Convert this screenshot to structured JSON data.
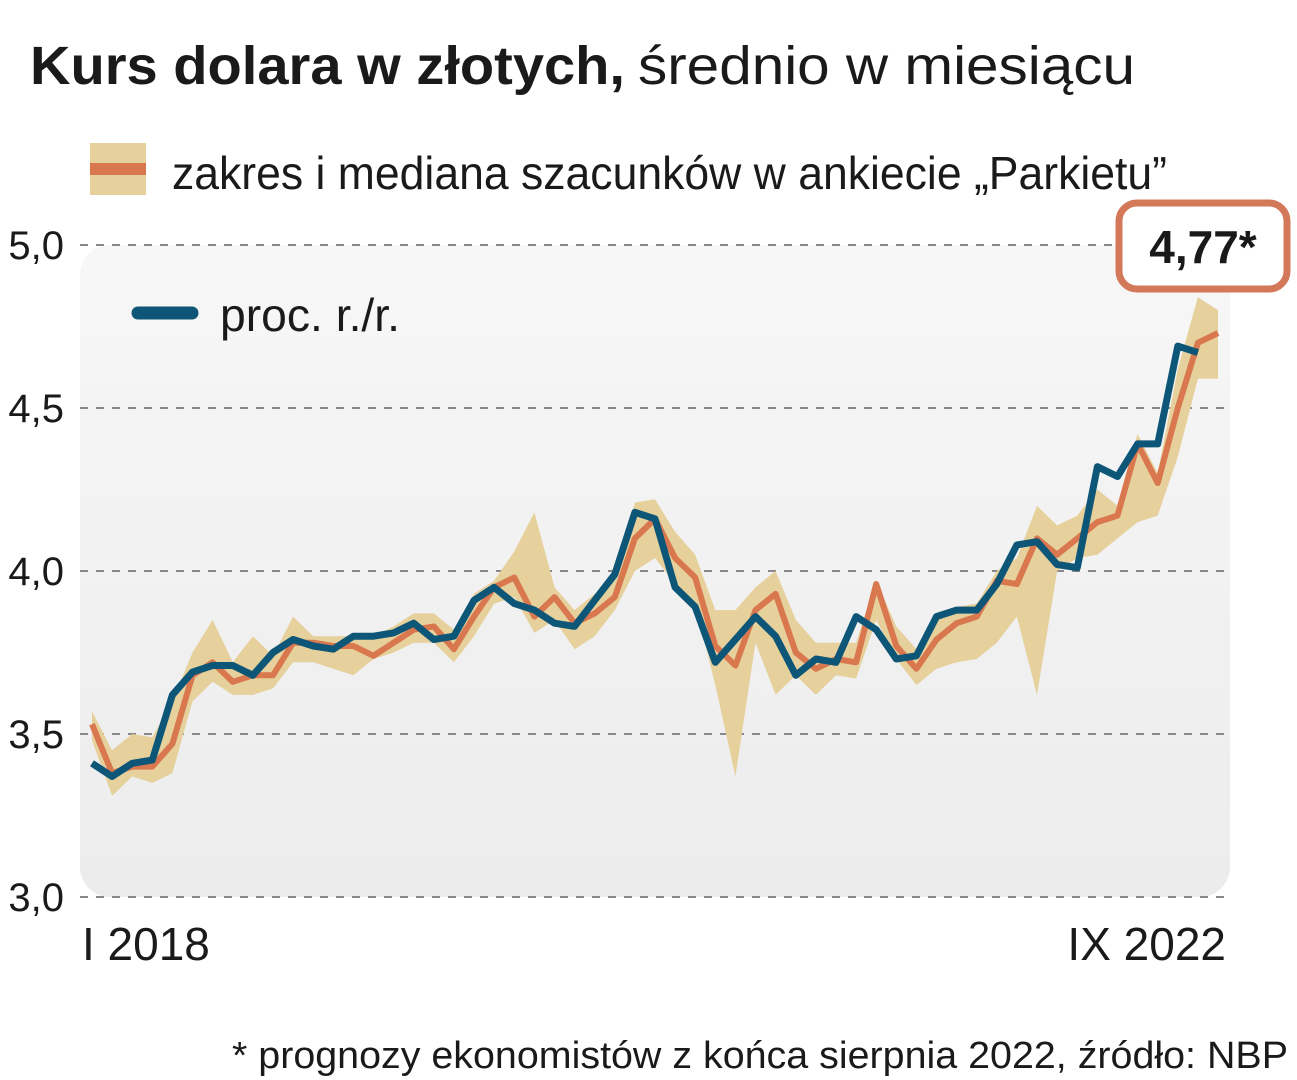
{
  "chart_data": {
    "type": "line",
    "title": "Kurs dolara w złotych,",
    "subtitle": "średnio w miesiącu",
    "annotation": "4,77*",
    "note": "* prognozy ekonomistów z końca sierpnia 2022, źródło: NBP",
    "categories": [
      "I 2018",
      null,
      null,
      null,
      null,
      null,
      null,
      null,
      null,
      null,
      null,
      null,
      null,
      null,
      null,
      null,
      null,
      null,
      null,
      null,
      null,
      null,
      null,
      null,
      null,
      null,
      null,
      null,
      null,
      null,
      null,
      null,
      null,
      null,
      null,
      null,
      null,
      null,
      null,
      null,
      null,
      null,
      null,
      null,
      null,
      null,
      null,
      null,
      null,
      null,
      null,
      null,
      null,
      null,
      null,
      null,
      "IX 2022"
    ],
    "series": [
      {
        "name": "zakres i mediana szacunków w ankiecie „Parkietu”",
        "color": "#d9774f",
        "band_color": "#e6d09c",
        "values": [
          3.53,
          3.38,
          3.4,
          3.4,
          3.47,
          3.68,
          3.72,
          3.66,
          3.68,
          3.68,
          3.78,
          3.78,
          3.77,
          3.77,
          3.74,
          3.78,
          3.82,
          3.83,
          3.76,
          3.86,
          3.95,
          3.98,
          3.86,
          3.92,
          3.84,
          3.87,
          3.92,
          4.1,
          4.16,
          4.04,
          3.98,
          3.77,
          3.71,
          3.88,
          3.93,
          3.75,
          3.7,
          3.73,
          3.72,
          3.96,
          3.77,
          3.7,
          3.79,
          3.84,
          3.86,
          3.97,
          3.96,
          4.1,
          4.05,
          4.1,
          4.15,
          4.17,
          4.39,
          4.27,
          4.5,
          4.7,
          4.73
        ],
        "low": [
          3.48,
          3.31,
          3.37,
          3.35,
          3.38,
          3.6,
          3.66,
          3.62,
          3.62,
          3.64,
          3.72,
          3.72,
          3.7,
          3.68,
          3.73,
          3.75,
          3.78,
          3.78,
          3.72,
          3.8,
          3.9,
          3.92,
          3.81,
          3.85,
          3.76,
          3.8,
          3.88,
          4.0,
          4.04,
          3.96,
          3.9,
          3.65,
          3.37,
          3.78,
          3.62,
          3.68,
          3.62,
          3.68,
          3.67,
          3.85,
          3.73,
          3.65,
          3.7,
          3.72,
          3.73,
          3.78,
          3.86,
          3.62,
          4.0,
          4.04,
          4.05,
          4.1,
          4.15,
          4.17,
          4.35,
          4.59,
          4.59
        ],
        "high": [
          3.57,
          3.45,
          3.5,
          3.49,
          3.6,
          3.75,
          3.85,
          3.72,
          3.8,
          3.74,
          3.86,
          3.8,
          3.8,
          3.8,
          3.8,
          3.83,
          3.87,
          3.87,
          3.82,
          3.93,
          3.97,
          4.06,
          4.18,
          3.95,
          3.88,
          3.93,
          3.97,
          4.21,
          4.22,
          4.12,
          4.05,
          3.88,
          3.88,
          3.95,
          4.0,
          3.85,
          3.78,
          3.78,
          3.78,
          3.97,
          3.83,
          3.76,
          3.86,
          3.89,
          3.9,
          4.0,
          4.04,
          4.2,
          4.14,
          4.17,
          4.25,
          4.2,
          4.42,
          4.3,
          4.62,
          4.84,
          4.8
        ]
      },
      {
        "name": "proc. r./r.",
        "color": "#0d5677",
        "values": [
          3.41,
          3.37,
          3.41,
          3.42,
          3.62,
          3.69,
          3.71,
          3.71,
          3.68,
          3.75,
          3.79,
          3.77,
          3.76,
          3.8,
          3.8,
          3.81,
          3.84,
          3.79,
          3.8,
          3.91,
          3.95,
          3.9,
          3.88,
          3.84,
          3.83,
          3.91,
          3.99,
          4.18,
          4.16,
          3.95,
          3.89,
          3.72,
          3.79,
          3.86,
          3.8,
          3.68,
          3.73,
          3.72,
          3.86,
          3.82,
          3.73,
          3.74,
          3.86,
          3.88,
          3.88,
          3.96,
          4.08,
          4.09,
          4.02,
          4.01,
          4.32,
          4.29,
          4.39,
          4.39,
          4.69,
          4.67,
          null
        ]
      }
    ],
    "ylim": [
      3,
      5
    ],
    "yticks": [
      {
        "value": 3,
        "label": "3,0"
      },
      {
        "value": 3.5,
        "label": "3,5"
      },
      {
        "value": 4,
        "label": "4,0"
      },
      {
        "value": 4.5,
        "label": "4,5"
      },
      {
        "value": 5,
        "label": "5,0"
      }
    ],
    "grid": true
  }
}
